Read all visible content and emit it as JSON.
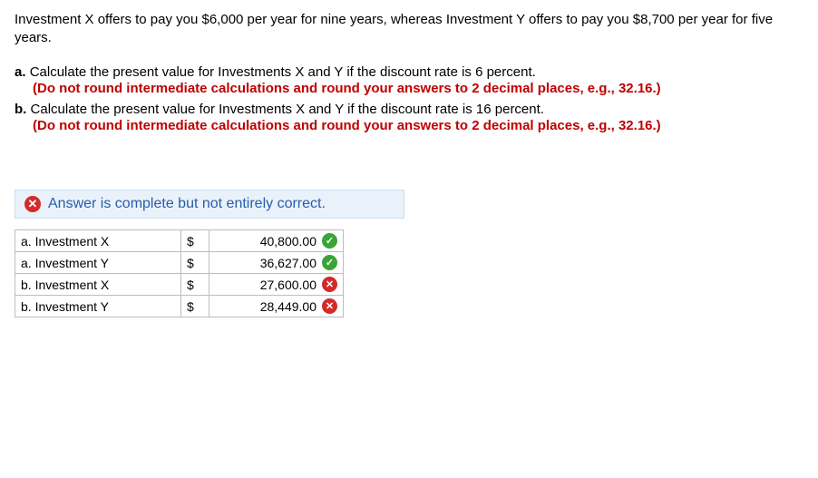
{
  "intro": "Investment X offers to pay you $6,000 per year for nine years, whereas Investment Y offers to pay you $8,700 per year for five years.",
  "questions": {
    "a": {
      "letter": "a.",
      "text": "Calculate the present value for Investments X and Y if the discount rate is 6 percent.",
      "instruction": "(Do not round intermediate calculations and round your answers to 2 decimal places, e.g., 32.16.)"
    },
    "b": {
      "letter": "b.",
      "text": "Calculate the present value for Investments X and Y if the discount rate is 16 percent.",
      "instruction": "(Do not round intermediate calculations and round your answers to 2 decimal places, e.g., 32.16.)"
    }
  },
  "feedback": {
    "icon_glyph": "✕",
    "message": "Answer is complete but not entirely correct.",
    "bar_bg": "#e9f2fb",
    "icon_bg": "#d42a2a",
    "text_color": "#2a5ca8"
  },
  "answers_table": {
    "currency": "$",
    "rows": [
      {
        "label": "a. Investment X",
        "value": "40,800.00",
        "status": "correct"
      },
      {
        "label": "a. Investment Y",
        "value": "36,627.00",
        "status": "correct"
      },
      {
        "label": "b. Investment X",
        "value": "27,600.00",
        "status": "incorrect"
      },
      {
        "label": "b. Investment Y",
        "value": "28,449.00",
        "status": "incorrect"
      }
    ],
    "status_colors": {
      "correct": "#3aa537",
      "incorrect": "#d42a2a"
    },
    "status_glyphs": {
      "correct": "✓",
      "incorrect": "✕"
    }
  }
}
